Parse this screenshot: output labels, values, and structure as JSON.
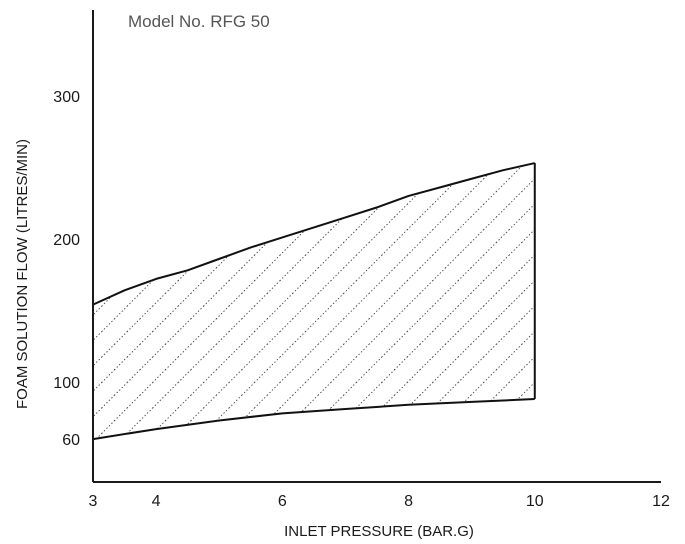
{
  "chart_data": {
    "type": "area",
    "title": "Model No. RFG 50",
    "xlabel": "INLET PRESSURE (BAR.G)",
    "ylabel": "FOAM SOLUTION FLOW (LITRES/MIN)",
    "xlim": [
      3,
      12
    ],
    "ylim": [
      30,
      360
    ],
    "xticks": [
      3,
      4,
      6,
      8,
      10,
      12
    ],
    "yticks": [
      60,
      100,
      200,
      300
    ],
    "grid": false,
    "fill": "diagonal-dotted-hatch",
    "series": [
      {
        "role": "upper-bound",
        "x": [
          3,
          3.5,
          4,
          4.5,
          5,
          5.5,
          6,
          6.5,
          7,
          7.5,
          8,
          8.5,
          9,
          9.5,
          10
        ],
        "y": [
          154,
          164,
          172,
          178,
          186,
          194,
          201,
          208,
          215,
          222,
          230,
          236,
          242,
          248,
          253
        ]
      },
      {
        "role": "lower-bound",
        "x": [
          3,
          4,
          5,
          6,
          7,
          8,
          9,
          10
        ],
        "y": [
          60,
          67,
          73,
          78,
          81,
          84,
          86,
          88
        ]
      }
    ],
    "colors": {
      "line": "#111111",
      "hatch": "#111111"
    }
  }
}
